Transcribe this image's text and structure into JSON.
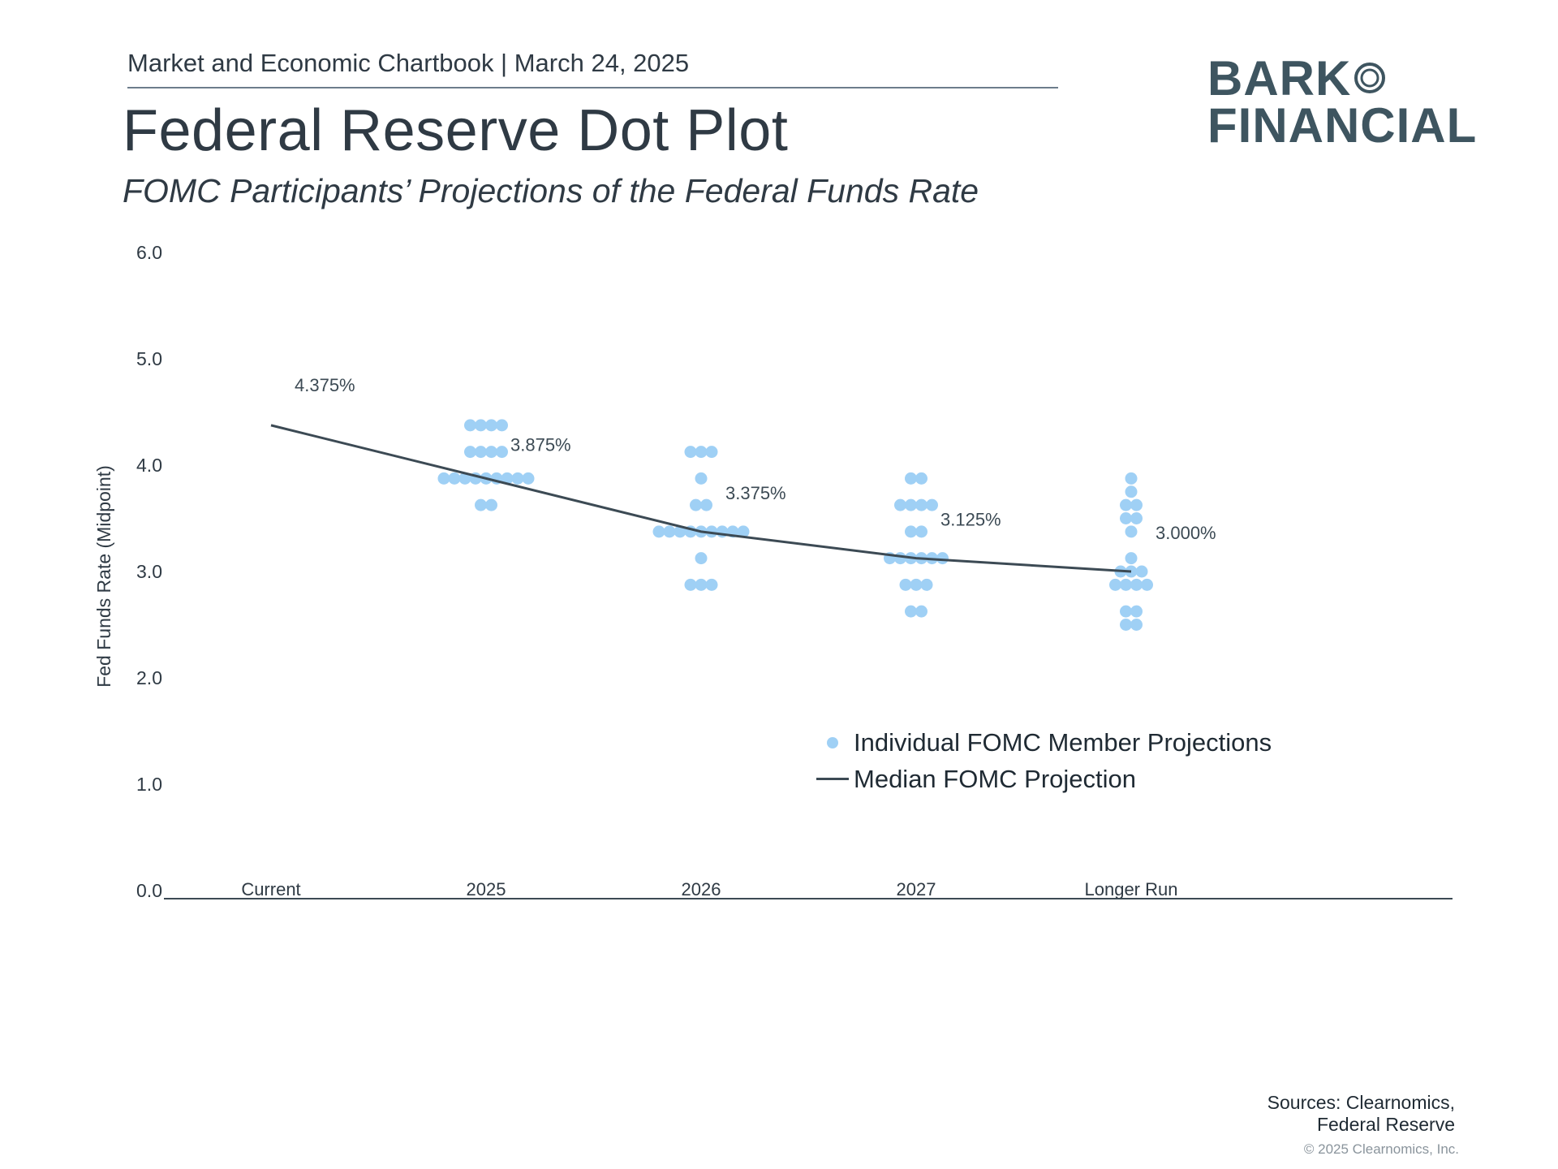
{
  "header": {
    "chartbook_line": "Market and Economic Chartbook | March 24, 2025",
    "title": "Federal Reserve Dot Plot",
    "subtitle": "FOMC Participants’ Projections of the Federal Funds Rate"
  },
  "logo": {
    "line1": "BARK",
    "line2": "FINANCIAL",
    "icon": "ring-o-icon"
  },
  "colors": {
    "dot": "#9fd0f5",
    "median_line": "#3c4a54",
    "text": "#2f3a44",
    "axis": "#3c4a54"
  },
  "legend": {
    "dots_label": "Individual FOMC Member Projections",
    "line_label": "Median FOMC Projection"
  },
  "footer": {
    "source_line1": "Sources: Clearnomics,",
    "source_line2": "Federal Reserve",
    "copyright": "© 2025 Clearnomics, Inc."
  },
  "chart_data": {
    "type": "scatter",
    "title": "Federal Reserve Dot Plot",
    "ylabel": "Fed Funds Rate (Midpoint)",
    "xlabel": "",
    "ylim": [
      0,
      6
    ],
    "yticks": [
      "0.0",
      "1.0",
      "2.0",
      "3.0",
      "4.0",
      "5.0",
      "6.0"
    ],
    "categories": [
      "Current",
      "2025",
      "2026",
      "2027",
      "Longer Run"
    ],
    "grid": false,
    "dots": [
      {
        "category": "2025",
        "levels": [
          {
            "rate": 4.375,
            "count": 4
          },
          {
            "rate": 4.125,
            "count": 4
          },
          {
            "rate": 3.875,
            "count": 9
          },
          {
            "rate": 3.625,
            "count": 2
          }
        ]
      },
      {
        "category": "2026",
        "levels": [
          {
            "rate": 4.125,
            "count": 3
          },
          {
            "rate": 3.875,
            "count": 1
          },
          {
            "rate": 3.625,
            "count": 2
          },
          {
            "rate": 3.375,
            "count": 9
          },
          {
            "rate": 3.125,
            "count": 1
          },
          {
            "rate": 2.875,
            "count": 3
          }
        ]
      },
      {
        "category": "2027",
        "levels": [
          {
            "rate": 3.875,
            "count": 2
          },
          {
            "rate": 3.625,
            "count": 4
          },
          {
            "rate": 3.375,
            "count": 2
          },
          {
            "rate": 3.125,
            "count": 6
          },
          {
            "rate": 2.875,
            "count": 3
          },
          {
            "rate": 2.625,
            "count": 2
          }
        ]
      },
      {
        "category": "Longer Run",
        "levels": [
          {
            "rate": 3.875,
            "count": 1
          },
          {
            "rate": 3.75,
            "count": 1
          },
          {
            "rate": 3.625,
            "count": 2
          },
          {
            "rate": 3.5,
            "count": 2
          },
          {
            "rate": 3.375,
            "count": 1
          },
          {
            "rate": 3.125,
            "count": 1
          },
          {
            "rate": 3.0,
            "count": 3
          },
          {
            "rate": 2.875,
            "count": 4
          },
          {
            "rate": 2.625,
            "count": 2
          },
          {
            "rate": 2.5,
            "count": 2
          }
        ]
      }
    ],
    "median": {
      "name": "Median FOMC Projection",
      "categories": [
        "Current",
        "2025",
        "2026",
        "2027",
        "Longer Run"
      ],
      "values": [
        4.375,
        3.875,
        3.375,
        3.125,
        3.0
      ],
      "labels": [
        "4.375%",
        "3.875%",
        "3.375%",
        "3.125%",
        "3.000%"
      ]
    },
    "legend": [
      "Individual FOMC Member Projections",
      "Median FOMC Projection"
    ]
  }
}
